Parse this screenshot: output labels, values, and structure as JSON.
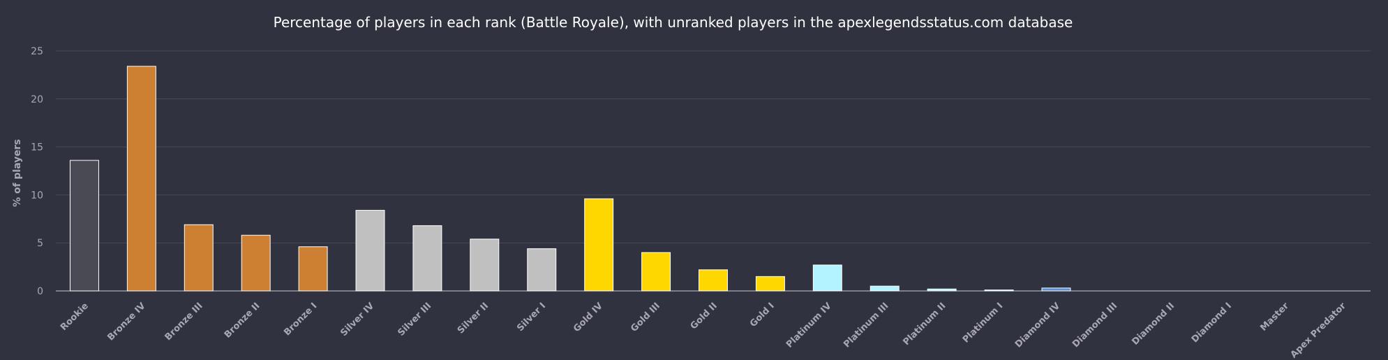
{
  "chart_data": {
    "type": "bar",
    "title": "Percentage of players in each rank (Battle Royale), with unranked players in the apexlegendsstatus.com database",
    "ylabel": "% of players",
    "xlabel": "",
    "ylim": [
      0,
      25
    ],
    "yticks": [
      0,
      5,
      10,
      15,
      20,
      25
    ],
    "grid": true,
    "categories": [
      "Rookie",
      "Bronze IV",
      "Bronze III",
      "Bronze II",
      "Bronze I",
      "Silver IV",
      "Silver III",
      "Silver II",
      "Silver I",
      "Gold IV",
      "Gold III",
      "Gold II",
      "Gold I",
      "Platinum IV",
      "Platinum III",
      "Platinum II",
      "Platinum I",
      "Diamond IV",
      "Diamond III",
      "Diamond II",
      "Diamond I",
      "Master",
      "Apex Predator"
    ],
    "values": [
      13.6,
      23.4,
      6.9,
      5.8,
      4.6,
      8.4,
      6.8,
      5.4,
      4.4,
      9.6,
      4.0,
      2.2,
      1.5,
      2.7,
      0.5,
      0.2,
      0.1,
      0.3,
      0,
      0,
      0,
      0,
      0
    ],
    "colors": [
      "#4a4a55",
      "#cd7f32",
      "#cd7f32",
      "#cd7f32",
      "#cd7f32",
      "#c0c0c0",
      "#c0c0c0",
      "#c0c0c0",
      "#c0c0c0",
      "#ffd700",
      "#ffd700",
      "#ffd700",
      "#ffd700",
      "#b3f3ff",
      "#b3f3ff",
      "#b3f3ff",
      "#b3f3ff",
      "#5b8fd6",
      "#5b8fd6",
      "#5b8fd6",
      "#5b8fd6",
      "#b44ecf",
      "#d8343a"
    ]
  }
}
